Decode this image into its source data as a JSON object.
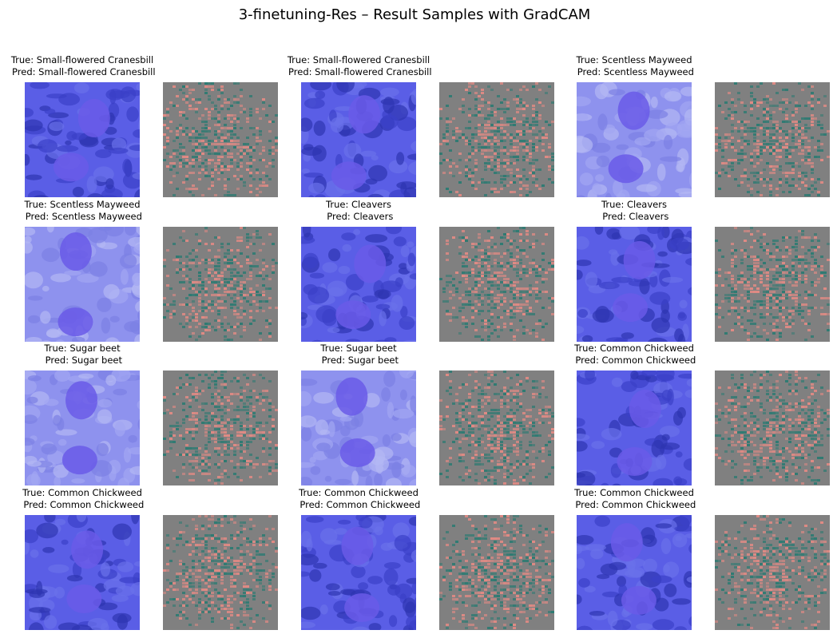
{
  "figure": {
    "title": "3-finetuning-Res – Result Samples with GradCAM"
  },
  "samples": [
    {
      "true_label": "Small-flowered Cranesbill",
      "pred_label": "Small-flowered Cranesbill",
      "overlay": "gradcam-overlay-cranesbill",
      "map": "saliency-map"
    },
    {
      "true_label": "Small-flowered Cranesbill",
      "pred_label": "Small-flowered Cranesbill",
      "overlay": "gradcam-overlay-cranesbill",
      "map": "saliency-map"
    },
    {
      "true_label": "Scentless Mayweed",
      "pred_label": "Scentless Mayweed",
      "overlay": "gradcam-overlay-mayweed",
      "map": "saliency-map"
    },
    {
      "true_label": "Scentless Mayweed",
      "pred_label": "Scentless Mayweed",
      "overlay": "gradcam-overlay-mayweed",
      "map": "saliency-map"
    },
    {
      "true_label": "Cleavers",
      "pred_label": "Cleavers",
      "overlay": "gradcam-overlay-cleavers",
      "map": "saliency-map"
    },
    {
      "true_label": "Cleavers",
      "pred_label": "Cleavers",
      "overlay": "gradcam-overlay-cleavers",
      "map": "saliency-map"
    },
    {
      "true_label": "Sugar beet",
      "pred_label": "Sugar beet",
      "overlay": "gradcam-overlay-sugar-beet",
      "map": "saliency-map"
    },
    {
      "true_label": "Sugar beet",
      "pred_label": "Sugar beet",
      "overlay": "gradcam-overlay-sugar-beet",
      "map": "saliency-map"
    },
    {
      "true_label": "Common Chickweed",
      "pred_label": "Common Chickweed",
      "overlay": "gradcam-overlay-chickweed",
      "map": "saliency-map"
    },
    {
      "true_label": "Common Chickweed",
      "pred_label": "Common Chickweed",
      "overlay": "gradcam-overlay-chickweed",
      "map": "saliency-map"
    },
    {
      "true_label": "Common Chickweed",
      "pred_label": "Common Chickweed",
      "overlay": "gradcam-overlay-chickweed",
      "map": "saliency-map"
    },
    {
      "true_label": "Common Chickweed",
      "pred_label": "Common Chickweed",
      "overlay": "gradcam-overlay-chickweed",
      "map": "saliency-map"
    }
  ],
  "colors": {
    "overlay_base": "#5a5ee6",
    "overlay_light": "#8e92ee",
    "leaf": "#6a5ae8",
    "saliency_bg": "#808080",
    "saliency_pos": "#e08a84",
    "saliency_neg": "#2e7a72"
  }
}
